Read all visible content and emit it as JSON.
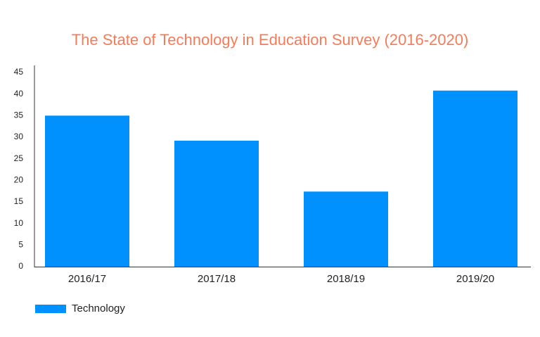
{
  "chart_data": {
    "type": "bar",
    "title": "The State of Technology in Education Survey (2016-2020)",
    "categories": [
      "2016/17",
      "2017/18",
      "2018/19",
      "2019/20"
    ],
    "series": [
      {
        "name": "Technology",
        "color": "#0091ff",
        "values": [
          35,
          29.2,
          17.4,
          40.8
        ]
      }
    ],
    "ylim": [
      0,
      45
    ],
    "yticks": [
      0,
      5,
      10,
      15,
      20,
      25,
      30,
      35,
      40,
      45
    ],
    "grid": false,
    "legend": "bottom-left"
  }
}
